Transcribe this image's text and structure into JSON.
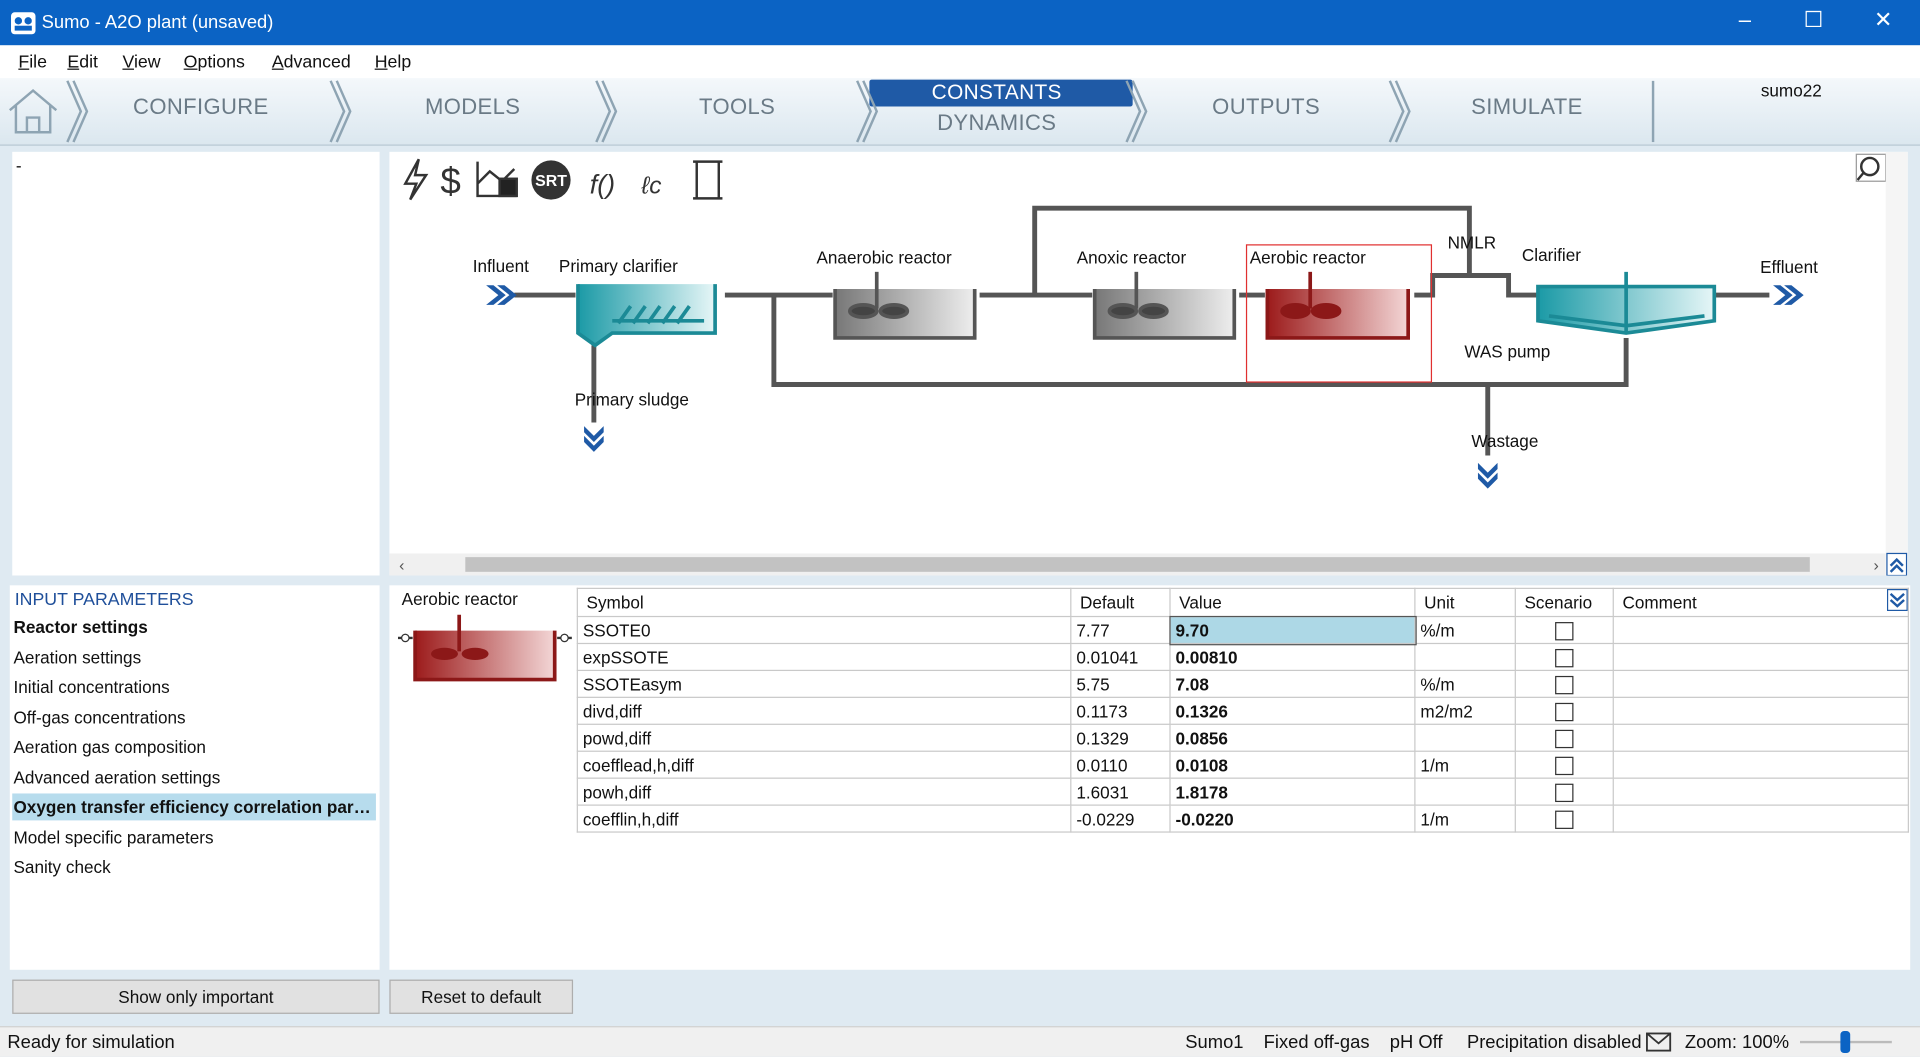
{
  "window": {
    "title": "Sumo - A2O plant (unsaved)"
  },
  "menu": [
    "File",
    "Edit",
    "View",
    "Options",
    "Advanced",
    "Help"
  ],
  "tabs": [
    "CONFIGURE",
    "MODELS",
    "TOOLS",
    "CONSTANTS",
    "DYNAMICS",
    "OUTPUTS",
    "SIMULATE"
  ],
  "logo": {
    "text": "sumo",
    "version": "22"
  },
  "tree": {
    "item": "-"
  },
  "toolbar": {
    "srt": "SRT"
  },
  "diagram": {
    "labels": [
      "Influent",
      "Primary clarifier",
      "Primary sludge",
      "Anaerobic reactor",
      "Anoxic reactor",
      "Aerobic reactor",
      "NMLR",
      "Clarifier",
      "Effluent",
      "WAS pump",
      "Wastage"
    ]
  },
  "input_parameters": {
    "title": "INPUT PARAMETERS",
    "items": [
      "Reactor settings",
      "Aeration settings",
      "Initial concentrations",
      "Off-gas concentrations",
      "Aeration gas composition",
      "Advanced aeration settings",
      "Oxygen transfer efficiency correlation parameters",
      "Model specific parameters",
      "Sanity check"
    ]
  },
  "selected_unit": "Aerobic reactor",
  "table": {
    "headers": [
      "Symbol",
      "Default",
      "Value",
      "Unit",
      "Scenario",
      "Comment"
    ],
    "rows": [
      {
        "symbol": "SSOTE0",
        "default": "7.77",
        "value": "9.70",
        "unit": "%/m"
      },
      {
        "symbol": "expSSOTE",
        "default": "0.01041",
        "value": "0.00810"
      },
      {
        "symbol": "SSOTEasym",
        "default": "5.75",
        "value": "7.08",
        "unit": "%/m"
      },
      {
        "symbol": "divd,diff",
        "default": "0.1173",
        "value": "0.1326",
        "unit": "m2/m2"
      },
      {
        "symbol": "powd,diff",
        "default": "0.1329",
        "value": "0.0856"
      },
      {
        "symbol": "coefflead,h,diff",
        "default": "0.0110",
        "value": "0.0108",
        "unit": "1/m"
      },
      {
        "symbol": "powh,diff",
        "default": "1.6031",
        "value": "1.8178"
      },
      {
        "symbol": "coefflin,h,diff",
        "default": "-0.0229",
        "value": "-0.0220",
        "unit": "1/m"
      }
    ]
  },
  "buttons": [
    "Show only important",
    "Reset to default"
  ],
  "status": {
    "left": "Ready for simulation",
    "items": [
      "Sumo1",
      "Fixed off-gas",
      "pH Off",
      "Precipitation disabled",
      "Zoom: 100%"
    ]
  }
}
